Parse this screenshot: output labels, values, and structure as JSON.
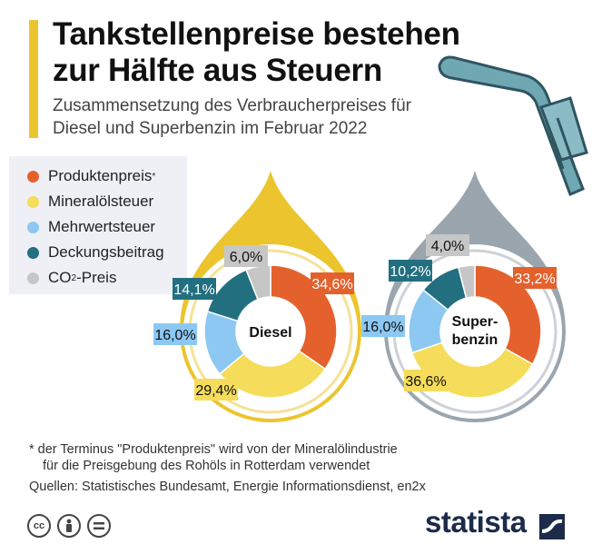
{
  "header": {
    "title_line1": "Tankstellenpreise bestehen",
    "title_line2": "zur Hälfte aus Steuern",
    "subtitle_line1": "Zusammensetzung des Verbraucherpreises für",
    "subtitle_line2": "Diesel und Superbenzin im Februar 2022"
  },
  "legend": [
    {
      "label": "Produktenpreis",
      "sup": "*",
      "color": "#e4612d"
    },
    {
      "label": "Mineralölsteuer",
      "color": "#f5dc5a"
    },
    {
      "label": "Mehrwertsteuer",
      "color": "#8cc8f2"
    },
    {
      "label": "Deckungsbeitrag",
      "color": "#226f80"
    },
    {
      "label": "CO",
      "sub": "2",
      "suffix": "-Preis",
      "color": "#c6c6c6"
    }
  ],
  "chart_data": [
    {
      "type": "pie",
      "title": "Diesel",
      "drop_color": "#ecc52e",
      "categories": [
        "Produktenpreis*",
        "Mineralölsteuer",
        "Mehrwertsteuer",
        "Deckungsbeitrag",
        "CO2-Preis"
      ],
      "values": [
        34.6,
        29.4,
        16.0,
        14.1,
        6.0
      ],
      "labels": [
        "34,6%",
        "29,4%",
        "16,0%",
        "14,1%",
        "6,0%"
      ]
    },
    {
      "type": "pie",
      "title": "Super-benzin",
      "title_line1": "Super-",
      "title_line2": "benzin",
      "drop_color": "#9aa5ae",
      "categories": [
        "Produktenpreis*",
        "Mineralölsteuer",
        "Mehrwertsteuer",
        "Deckungsbeitrag",
        "CO2-Preis"
      ],
      "values": [
        33.2,
        36.6,
        16.0,
        10.2,
        4.0
      ],
      "labels": [
        "33,2%",
        "36,6%",
        "16,0%",
        "10,2%",
        "4,0%"
      ]
    }
  ],
  "footer": {
    "footnote_line1": "* der Terminus \"Produktenpreis\" wird von der Mineralölindustrie",
    "footnote_line2": "für die Preisgebung des Rohöls in Rotterdam verwendet",
    "sources": "Quellen: Statistisches Bundesamt, Energie Informationsdienst, en2x",
    "license_icons": [
      "cc-icon",
      "attribution-icon",
      "no-derivatives-icon"
    ],
    "brand": "statista"
  }
}
